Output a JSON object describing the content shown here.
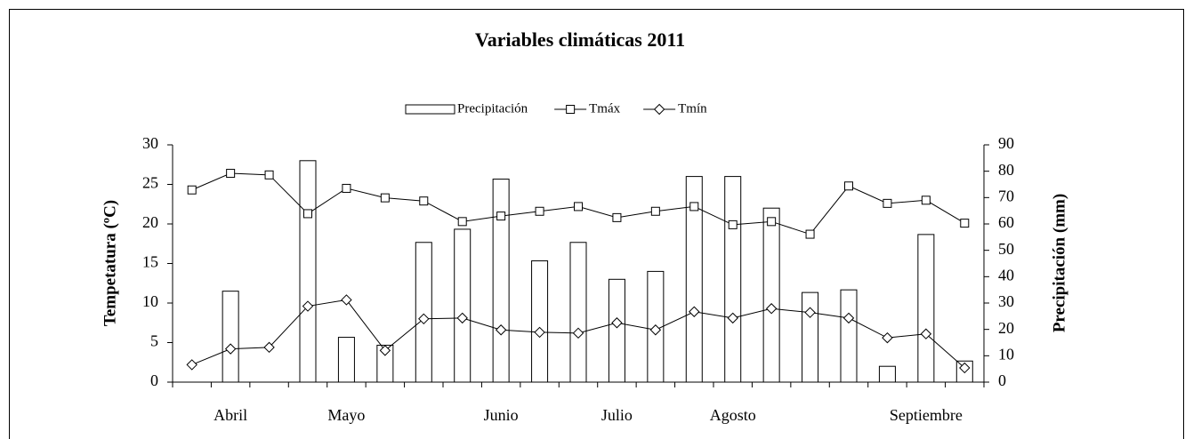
{
  "chart_data": {
    "type": "combo",
    "title": "Variables climáticas 2011",
    "categories": [
      null,
      "Abril",
      null,
      null,
      "Mayo",
      null,
      null,
      null,
      "Junio",
      null,
      null,
      "Julio",
      null,
      null,
      "Agosto",
      null,
      null,
      null,
      null,
      "Septiembre",
      null
    ],
    "y_label": "Tempetatura (ºC)",
    "y2_label": "Precipitación (mm)",
    "ylim": [
      0,
      30
    ],
    "yticks": [
      0,
      5,
      10,
      15,
      20,
      25,
      30
    ],
    "y2lim": [
      0,
      90
    ],
    "y2ticks": [
      0,
      10,
      20,
      30,
      40,
      50,
      60,
      70,
      80,
      90
    ],
    "grid": false,
    "legend_position": "top",
    "series": [
      {
        "name": "Precipitación",
        "type": "bar",
        "axis": "y2",
        "color": "#ffffff",
        "values": [
          0,
          34.5,
          0,
          84,
          17,
          14,
          53,
          58,
          77,
          46,
          53,
          39,
          42,
          78,
          78,
          66,
          34,
          35,
          6,
          56,
          8
        ]
      },
      {
        "name": "Tmáx",
        "type": "line",
        "marker": "square",
        "color": "#000000",
        "values": [
          24.3,
          26.4,
          26.2,
          21.3,
          24.5,
          23.3,
          22.9,
          20.3,
          21.0,
          21.6,
          22.2,
          20.8,
          21.6,
          22.2,
          19.9,
          20.3,
          18.7,
          24.8,
          22.6,
          23.0,
          20.1
        ]
      },
      {
        "name": "Tmín",
        "type": "line",
        "marker": "diamond",
        "color": "#000000",
        "values": [
          2.2,
          4.2,
          4.4,
          9.6,
          10.4,
          4.0,
          8.0,
          8.1,
          6.6,
          6.3,
          6.2,
          7.5,
          6.6,
          8.9,
          8.1,
          9.3,
          8.8,
          8.1,
          5.6,
          6.1,
          1.8
        ]
      }
    ]
  }
}
